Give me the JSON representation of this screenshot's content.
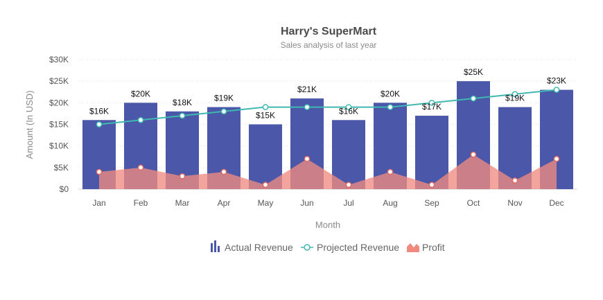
{
  "chart_data": {
    "type": "bar",
    "title": "Harry's SuperMart",
    "subtitle": "Sales analysis of last year",
    "xlabel": "Month",
    "ylabel": "Amount (In USD)",
    "ylim": [
      0,
      30000
    ],
    "y_ticks": [
      0,
      5000,
      10000,
      15000,
      20000,
      25000,
      30000
    ],
    "y_tick_labels": [
      "$0",
      "$5K",
      "$10K",
      "$15K",
      "$20K",
      "$25K",
      "$30K"
    ],
    "grid": true,
    "legend_position": "bottom",
    "categories": [
      "Jan",
      "Feb",
      "Mar",
      "Apr",
      "May",
      "Jun",
      "Jul",
      "Aug",
      "Sep",
      "Oct",
      "Nov",
      "Dec"
    ],
    "series": [
      {
        "name": "Actual Revenue",
        "type": "bar",
        "color": "#4b57a8",
        "values": [
          16000,
          20000,
          18000,
          19000,
          15000,
          21000,
          16000,
          20000,
          17000,
          25000,
          19000,
          23000
        ],
        "labels": [
          "$16K",
          "$20K",
          "$18K",
          "$19K",
          "$15K",
          "$21K",
          "$16K",
          "$20K",
          "$17K",
          "$25K",
          "$19K",
          "$23K"
        ]
      },
      {
        "name": "Projected Revenue",
        "type": "line",
        "color": "#3fb8b0",
        "values": [
          15000,
          16000,
          17000,
          18000,
          19000,
          19000,
          19000,
          19000,
          20000,
          21000,
          22000,
          23000
        ]
      },
      {
        "name": "Profit",
        "type": "area",
        "color": "#f08a80",
        "values": [
          4000,
          5000,
          3000,
          4000,
          1000,
          7000,
          1000,
          4000,
          1000,
          8000,
          2000,
          7000
        ]
      }
    ]
  }
}
